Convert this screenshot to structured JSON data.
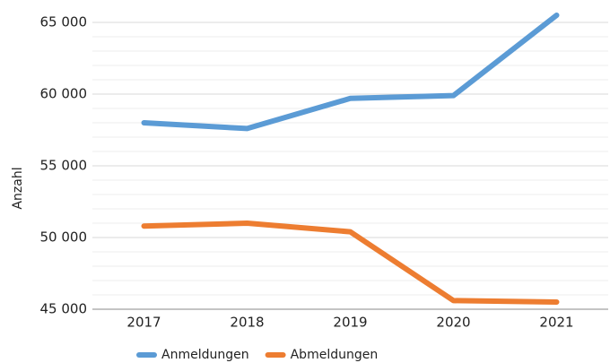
{
  "chart_data": {
    "type": "line",
    "y_label": "Anzahl",
    "categories": [
      "2017",
      "2018",
      "2019",
      "2020",
      "2021"
    ],
    "series": [
      {
        "name": "Anmeldungen",
        "color": "#5b9bd5",
        "values": [
          58000,
          57600,
          59700,
          59900,
          65500
        ]
      },
      {
        "name": "Abmeldungen",
        "color": "#ed7d31",
        "values": [
          50800,
          51000,
          50400,
          45600,
          45500
        ]
      }
    ],
    "ylim": [
      45000,
      66000
    ],
    "yticks": [
      {
        "value": 45000,
        "label": "45 000"
      },
      {
        "value": 50000,
        "label": "50 000"
      },
      {
        "value": 55000,
        "label": "55 000"
      },
      {
        "value": 60000,
        "label": "60 000"
      },
      {
        "value": 65000,
        "label": "65 000"
      }
    ],
    "minor_yticks": [
      46000,
      47000,
      48000,
      49000,
      51000,
      52000,
      53000,
      54000,
      56000,
      57000,
      58000,
      59000,
      61000,
      62000,
      63000,
      64000
    ],
    "grid": true,
    "legend": "bottom"
  }
}
